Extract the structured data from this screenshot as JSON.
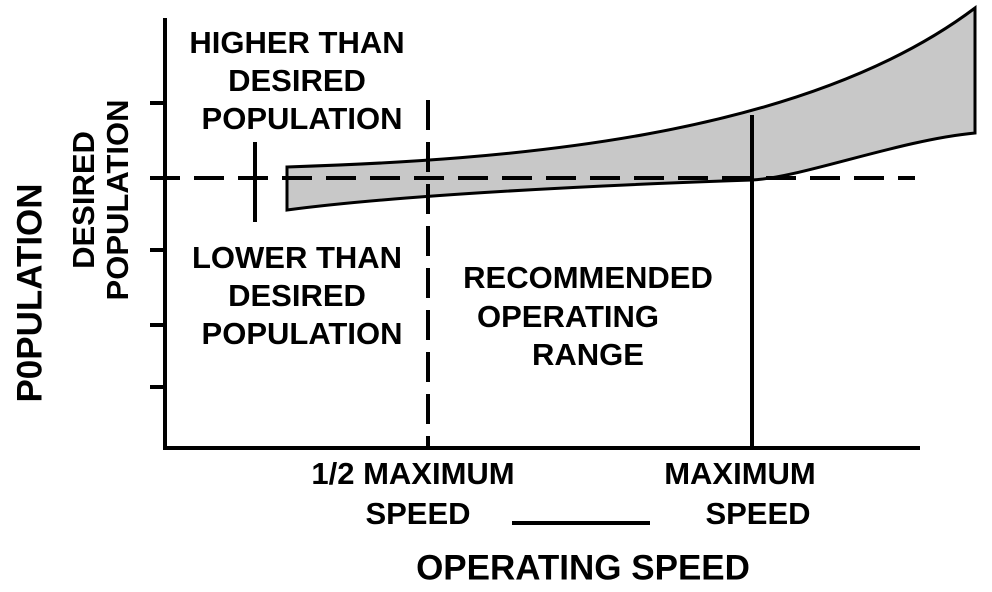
{
  "y_axis_label": "P0PULATION",
  "desired_label": [
    "DESIRED",
    "POPULATION"
  ],
  "higher_label": [
    "HIGHER THAN",
    "DESIRED",
    "POPULATION"
  ],
  "lower_label": [
    "LOWER THAN",
    "DESIRED",
    "POPULATION"
  ],
  "range_label": [
    "RECOMMENDED",
    "OPERATING",
    "RANGE"
  ],
  "half_speed_label": [
    "1/2 MAXIMUM",
    "SPEED"
  ],
  "max_speed_label": [
    "MAXIMUM",
    "SPEED"
  ],
  "x_axis_label": "OPERATING SPEED"
}
